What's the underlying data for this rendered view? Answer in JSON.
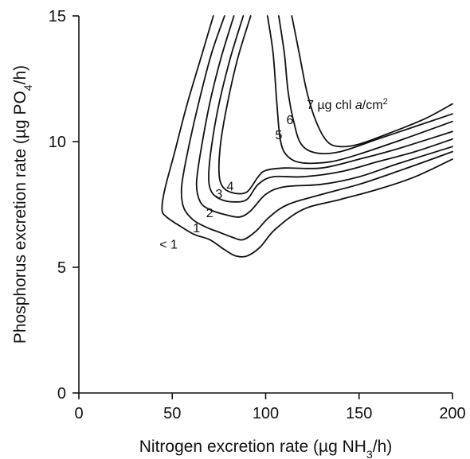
{
  "chart_data": {
    "type": "contour",
    "title": "",
    "xlabel": "Nitrogen excretion rate (µg NH3/h)",
    "ylabel": "Phosphorus excretion rate (µg PO4/h)",
    "xlim": [
      0,
      200
    ],
    "ylim": [
      0,
      15
    ],
    "xticks": [
      "0",
      "50",
      "100",
      "150",
      "200"
    ],
    "yticks": [
      "0",
      "5",
      "10",
      "15"
    ],
    "grid": false,
    "series": [
      {
        "label": "< 1",
        "label_at": [
          48,
          5.75
        ],
        "points": [
          [
            72,
            15
          ],
          [
            66,
            13.5
          ],
          [
            58,
            11.5
          ],
          [
            51,
            9.5
          ],
          [
            46,
            8.1
          ],
          [
            44.5,
            7.3
          ],
          [
            47,
            7.0
          ],
          [
            55,
            6.6
          ],
          [
            62,
            6.3
          ],
          [
            70,
            6.1
          ],
          [
            78,
            5.7
          ],
          [
            84,
            5.45
          ],
          [
            90,
            5.45
          ],
          [
            97,
            5.8
          ],
          [
            105,
            6.5
          ],
          [
            120,
            7.3
          ],
          [
            140,
            7.7
          ],
          [
            160,
            8.1
          ],
          [
            180,
            8.6
          ],
          [
            200,
            9.3
          ]
        ]
      },
      {
        "label": "1",
        "label_at": [
          63,
          6.4
        ],
        "points": [
          [
            78,
            15
          ],
          [
            71,
            13.5
          ],
          [
            64,
            11.5
          ],
          [
            58,
            9.5
          ],
          [
            55,
            8.2
          ],
          [
            56,
            7.4
          ],
          [
            61,
            6.9
          ],
          [
            68,
            6.6
          ],
          [
            75,
            6.4
          ],
          [
            82,
            6.2
          ],
          [
            88,
            6.1
          ],
          [
            95,
            6.45
          ],
          [
            102,
            7.0
          ],
          [
            112,
            7.5
          ],
          [
            130,
            7.9
          ],
          [
            150,
            8.3
          ],
          [
            170,
            8.8
          ],
          [
            200,
            9.6
          ]
        ]
      },
      {
        "label": "2",
        "label_at": [
          70,
          7.0
        ],
        "points": [
          [
            83,
            15
          ],
          [
            76,
            13.3
          ],
          [
            70,
            11.5
          ],
          [
            65,
            9.5
          ],
          [
            63,
            8.3
          ],
          [
            65,
            7.6
          ],
          [
            70,
            7.3
          ],
          [
            78,
            7.1
          ],
          [
            86,
            7.0
          ],
          [
            92,
            7.25
          ],
          [
            100,
            7.9
          ],
          [
            110,
            8.2
          ],
          [
            130,
            8.3
          ],
          [
            150,
            8.6
          ],
          [
            170,
            9.1
          ],
          [
            200,
            9.8
          ]
        ]
      },
      {
        "label": "3",
        "label_at": [
          75,
          7.75
        ],
        "points": [
          [
            88,
            15
          ],
          [
            81,
            13.3
          ],
          [
            75,
            11.5
          ],
          [
            71,
            9.8
          ],
          [
            69.5,
            8.6
          ],
          [
            71,
            8.0
          ],
          [
            76,
            7.7
          ],
          [
            83,
            7.6
          ],
          [
            90,
            7.7
          ],
          [
            96,
            8.3
          ],
          [
            104,
            8.6
          ],
          [
            120,
            8.6
          ],
          [
            140,
            8.8
          ],
          [
            160,
            9.2
          ],
          [
            180,
            9.6
          ],
          [
            200,
            10.1
          ]
        ]
      },
      {
        "label": "4",
        "label_at": [
          81,
          8.05
        ],
        "points": [
          [
            92,
            15
          ],
          [
            85,
            13.3
          ],
          [
            79.5,
            11.5
          ],
          [
            76,
            10.0
          ],
          [
            75,
            8.8
          ],
          [
            77,
            8.2
          ],
          [
            83,
            7.95
          ],
          [
            90,
            8.0
          ],
          [
            96,
            8.6
          ],
          [
            100,
            8.85
          ],
          [
            110,
            8.95
          ],
          [
            130,
            8.95
          ],
          [
            150,
            9.3
          ],
          [
            170,
            9.7
          ],
          [
            200,
            10.4
          ]
        ]
      },
      {
        "label": "5",
        "label_at": [
          107,
          10.1
        ],
        "points": [
          [
            101,
            15
          ],
          [
            104,
            13.5
          ],
          [
            106,
            11.5
          ],
          [
            108,
            10.0
          ],
          [
            112,
            9.4
          ],
          [
            120,
            9.15
          ],
          [
            135,
            9.2
          ],
          [
            150,
            9.5
          ],
          [
            170,
            10.0
          ],
          [
            200,
            10.8
          ]
        ]
      },
      {
        "label": "6",
        "label_at": [
          113,
          10.7
        ],
        "points": [
          [
            107,
            15
          ],
          [
            110,
            13.5
          ],
          [
            112,
            12.0
          ],
          [
            115,
            10.8
          ],
          [
            119,
            9.9
          ],
          [
            127,
            9.55
          ],
          [
            140,
            9.6
          ],
          [
            160,
            10.1
          ],
          [
            180,
            10.6
          ],
          [
            200,
            11.1
          ]
        ]
      },
      {
        "label": "7 µg chl a/cm2",
        "label_at": [
          122,
          11.3
        ],
        "points": [
          [
            114,
            15
          ],
          [
            118,
            13.5
          ],
          [
            122,
            12.0
          ],
          [
            127,
            10.8
          ],
          [
            133,
            10.0
          ],
          [
            140,
            9.8
          ],
          [
            150,
            9.9
          ],
          [
            165,
            10.3
          ],
          [
            185,
            10.9
          ],
          [
            200,
            11.5
          ]
        ]
      }
    ]
  }
}
